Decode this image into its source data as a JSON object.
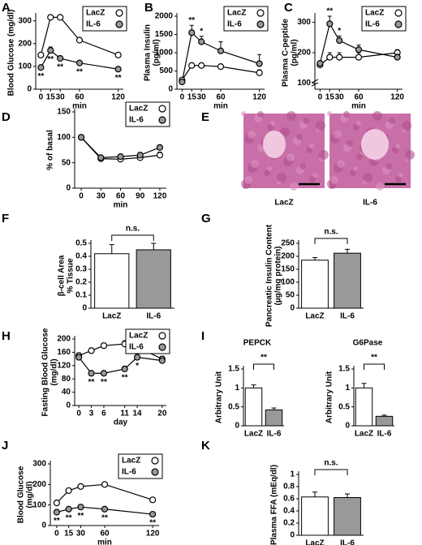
{
  "chart_data": [
    {
      "type": "line",
      "panel": "A",
      "ylabel": [
        "Blood Glucose (mg/dl)"
      ],
      "xlabel": "min",
      "x": [
        0,
        15,
        30,
        60,
        120
      ],
      "xlim": [
        -8,
        128
      ],
      "xticks": [
        0,
        15,
        30,
        60,
        120
      ],
      "ylim": [
        0,
        320
      ],
      "yticks": [
        0,
        100,
        200,
        300
      ],
      "series": [
        {
          "name": "LacZ",
          "color": "#ffffff",
          "values": [
            150,
            315,
            315,
            215,
            150
          ],
          "errors": [
            8,
            10,
            10,
            8,
            6
          ]
        },
        {
          "name": "IL-6",
          "color": "#999999",
          "values": [
            95,
            170,
            135,
            115,
            88
          ],
          "errors": [
            6,
            15,
            10,
            6,
            5
          ]
        }
      ],
      "annotations": [
        {
          "x": 0,
          "text": "**"
        },
        {
          "x": 15,
          "text": "**"
        },
        {
          "x": 30,
          "text": "**"
        },
        {
          "x": 60,
          "text": "**"
        },
        {
          "x": 120,
          "text": "**"
        }
      ]
    },
    {
      "type": "line",
      "panel": "B",
      "ylabel": [
        "Plasma Insulin",
        "(pg/ml)"
      ],
      "xlabel": "min",
      "x": [
        0,
        15,
        30,
        60,
        120
      ],
      "xlim": [
        -8,
        128
      ],
      "xticks": [
        0,
        15,
        30,
        60,
        120
      ],
      "ylim": [
        0,
        2000
      ],
      "yticks": [
        0,
        500,
        1000,
        1500,
        2000
      ],
      "series": [
        {
          "name": "LacZ",
          "color": "#ffffff",
          "values": [
            250,
            650,
            650,
            620,
            450
          ],
          "errors": [
            40,
            60,
            60,
            60,
            80
          ]
        },
        {
          "name": "IL-6",
          "color": "#999999",
          "values": [
            200,
            1550,
            1300,
            1050,
            700
          ],
          "errors": [
            30,
            200,
            150,
            250,
            250
          ]
        }
      ],
      "annotations": [
        {
          "x": 15,
          "text": "**"
        },
        {
          "x": 30,
          "text": "*"
        }
      ]
    },
    {
      "type": "line",
      "panel": "C",
      "ylabel": [
        "Plasma C-peptide",
        "(pg/ml)"
      ],
      "xlabel": "min",
      "x": [
        0,
        15,
        30,
        60,
        120
      ],
      "xlim": [
        -8,
        128
      ],
      "xticks": [
        0,
        15,
        30,
        60,
        120
      ],
      "ylim": [
        80,
        320
      ],
      "yticks": [
        100,
        200,
        300
      ],
      "series": [
        {
          "name": "LacZ",
          "color": "#ffffff",
          "values": [
            160,
            185,
            185,
            185,
            200
          ],
          "errors": [
            8,
            15,
            15,
            15,
            10
          ]
        },
        {
          "name": "IL-6",
          "color": "#999999",
          "values": [
            165,
            295,
            240,
            210,
            185
          ],
          "errors": [
            8,
            25,
            15,
            15,
            10
          ]
        }
      ],
      "annotations": [
        {
          "x": 15,
          "text": "**"
        },
        {
          "x": 30,
          "text": "*"
        }
      ]
    },
    {
      "type": "line",
      "panel": "D",
      "ylabel": [
        "% of basal"
      ],
      "xlabel": "min",
      "x": [
        0,
        30,
        60,
        90,
        120
      ],
      "xlim": [
        -10,
        130
      ],
      "xticks": [
        0,
        30,
        60,
        90,
        120
      ],
      "ylim": [
        0,
        150
      ],
      "yticks": [
        0,
        50,
        100,
        150
      ],
      "series": [
        {
          "name": "LacZ",
          "color": "#ffffff",
          "values": [
            100,
            58,
            57,
            60,
            65
          ],
          "errors": [
            0,
            4,
            5,
            6,
            6
          ]
        },
        {
          "name": "IL-6",
          "color": "#999999",
          "values": [
            100,
            60,
            62,
            65,
            80
          ],
          "errors": [
            0,
            3,
            4,
            5,
            5
          ]
        }
      ],
      "annotations": []
    },
    {
      "type": "image",
      "panel": "E",
      "categories": [
        "LacZ",
        "IL-6"
      ]
    },
    {
      "type": "bar",
      "panel": "F",
      "ylabel": [
        "β-cell Area",
        "% Tissue"
      ],
      "categories": [
        "LacZ",
        "IL-6"
      ],
      "values": [
        0.42,
        0.45
      ],
      "errors": [
        0.07,
        0.05
      ],
      "colors": [
        "#ffffff",
        "#999999"
      ],
      "ylim": [
        0,
        0.5
      ],
      "yticks": [
        0,
        0.1,
        0.2,
        0.3,
        0.4,
        0.5
      ],
      "significance": "n.s."
    },
    {
      "type": "bar",
      "panel": "G",
      "ylabel": [
        "Pancreatic Insulin Content",
        "(µg/mg protein)"
      ],
      "categories": [
        "LacZ",
        "IL-6"
      ],
      "values": [
        185,
        212
      ],
      "errors": [
        10,
        15
      ],
      "colors": [
        "#ffffff",
        "#999999"
      ],
      "ylim": [
        0,
        250
      ],
      "yticks": [
        0,
        50,
        100,
        150,
        200,
        250
      ],
      "significance": "n.s."
    },
    {
      "type": "line",
      "panel": "H",
      "ylabel": [
        "Fasting Blood Glucose",
        "(mg/dl)"
      ],
      "xlabel": "day",
      "x": [
        0,
        3,
        6,
        11,
        14,
        20
      ],
      "xlim": [
        -1,
        21
      ],
      "xticks": [
        0,
        3,
        6,
        11,
        14,
        20
      ],
      "ylim": [
        0,
        200
      ],
      "yticks": [
        0,
        40,
        80,
        120,
        160,
        200
      ],
      "series": [
        {
          "name": "LacZ",
          "color": "#ffffff",
          "values": [
            150,
            165,
            180,
            185,
            175,
            140
          ],
          "errors": [
            8,
            8,
            8,
            10,
            10,
            8
          ]
        },
        {
          "name": "IL-6",
          "color": "#999999",
          "values": [
            145,
            97,
            97,
            110,
            145,
            135
          ],
          "errors": [
            8,
            6,
            6,
            8,
            10,
            8
          ]
        }
      ],
      "annotations": [
        {
          "x": 3,
          "text": "**"
        },
        {
          "x": 6,
          "text": "**"
        },
        {
          "x": 11,
          "text": "**"
        },
        {
          "x": 14,
          "text": "*"
        }
      ]
    },
    {
      "type": "bar",
      "panel": "I",
      "title": "PEPCK",
      "ylabel": [
        "Arbitrary Unit"
      ],
      "categories": [
        "LacZ",
        "IL-6"
      ],
      "values": [
        1.0,
        0.42
      ],
      "errors": [
        0.08,
        0.05
      ],
      "colors": [
        "#ffffff",
        "#999999"
      ],
      "ylim": [
        0,
        1.5
      ],
      "yticks": [
        0,
        0.5,
        1,
        1.5
      ],
      "significance": "**"
    },
    {
      "type": "bar",
      "title": "G6Pase",
      "ylabel": [
        "Arbitrary Unit"
      ],
      "categories": [
        "LacZ",
        "IL-6"
      ],
      "values": [
        1.0,
        0.25
      ],
      "errors": [
        0.12,
        0.03
      ],
      "colors": [
        "#ffffff",
        "#999999"
      ],
      "ylim": [
        0,
        1.5
      ],
      "yticks": [
        0,
        0.5,
        1,
        1.5
      ],
      "significance": "**"
    },
    {
      "type": "line",
      "panel": "J",
      "ylabel": [
        "Blood Glucose",
        "(mg/dl)"
      ],
      "xlabel": "min",
      "x": [
        0,
        15,
        30,
        60,
        120
      ],
      "xlim": [
        -8,
        128
      ],
      "xticks": [
        0,
        15,
        30,
        60,
        120
      ],
      "ylim": [
        0,
        300
      ],
      "yticks": [
        0,
        100,
        200,
        300
      ],
      "series": [
        {
          "name": "LacZ",
          "color": "#ffffff",
          "values": [
            110,
            170,
            190,
            200,
            125
          ],
          "errors": [
            6,
            10,
            10,
            10,
            6
          ]
        },
        {
          "name": "IL-6",
          "color": "#999999",
          "values": [
            65,
            80,
            90,
            80,
            55
          ],
          "errors": [
            5,
            5,
            6,
            5,
            4
          ]
        }
      ],
      "annotations": [
        {
          "x": 0,
          "text": "**"
        },
        {
          "x": 15,
          "text": "**"
        },
        {
          "x": 30,
          "text": "**"
        },
        {
          "x": 60,
          "text": "**"
        },
        {
          "x": 120,
          "text": "**"
        }
      ]
    },
    {
      "type": "bar",
      "panel": "K",
      "ylabel": [
        "Plasma FFA (mEq/dl)"
      ],
      "categories": [
        "LacZ",
        "IL-6"
      ],
      "values": [
        0.63,
        0.62
      ],
      "errors": [
        0.08,
        0.06
      ],
      "colors": [
        "#ffffff",
        "#999999"
      ],
      "ylim": [
        0,
        1
      ],
      "yticks": [
        0,
        0.2,
        0.4,
        0.6,
        0.8,
        1
      ],
      "significance": "n.s."
    }
  ]
}
